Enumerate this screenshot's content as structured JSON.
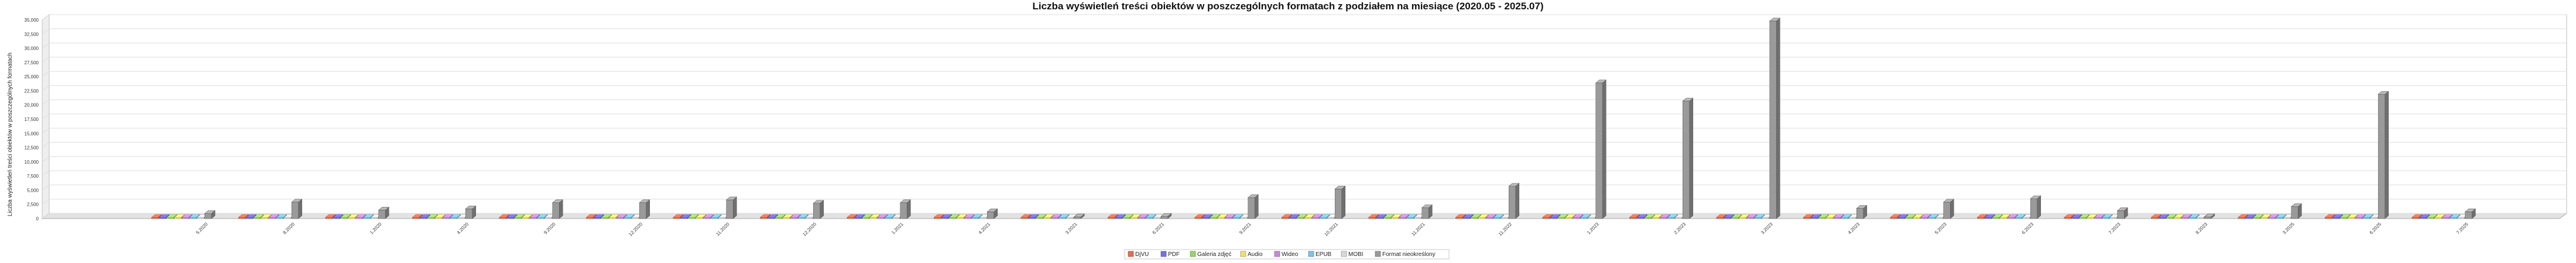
{
  "chart_data": {
    "type": "bar",
    "title": "Liczba wyświetleń treści obiektów w poszczególnych formatach z podziałem na miesiące (2020.05 - 2025.07)",
    "xlabel": "",
    "ylabel": "Liczba wyświetleń treści obiektów w poszczególnych formatach",
    "ylim": [
      0,
      35000
    ],
    "yticks": [
      0,
      2500,
      5000,
      7500,
      10000,
      12500,
      15000,
      17500,
      20000,
      22500,
      25000,
      27500,
      30000,
      32500,
      35000
    ],
    "ytick_labels": [
      "0",
      "2,500",
      "5,000",
      "7,500",
      "10,000",
      "12,500",
      "15,000",
      "17,500",
      "20,000",
      "22,500",
      "25,000",
      "27,500",
      "30,000",
      "32,500",
      "35,000"
    ],
    "grid": true,
    "legend_position": "bottom",
    "categories": [
      "5.2020",
      "8.2020",
      "1.2020",
      "4.2020",
      "9.2020",
      "12.2020",
      "11.2020",
      "12.2020",
      "1.2021",
      "4.2021",
      "3.2021",
      "6.2021",
      "9.2021",
      "10.2021",
      "11.2021",
      "11.2022",
      "1.2023",
      "2.2023",
      "3.2023",
      "4.2023",
      "5.2023",
      "6.2023",
      "7.2023",
      "8.2023",
      "3.2025",
      "6.2025",
      "7.2025"
    ],
    "series": [
      {
        "name": "DjVU",
        "color": "#e07050",
        "values": [
          0,
          0,
          0,
          0,
          0,
          0,
          0,
          0,
          0,
          0,
          0,
          0,
          0,
          0,
          0,
          0,
          0,
          0,
          0,
          0,
          0,
          0,
          0,
          0,
          0,
          0,
          0
        ]
      },
      {
        "name": "PDF",
        "color": "#7a6ee0",
        "values": [
          0,
          0,
          0,
          0,
          0,
          0,
          0,
          0,
          0,
          0,
          0,
          0,
          0,
          0,
          0,
          0,
          0,
          0,
          0,
          0,
          0,
          0,
          0,
          0,
          0,
          0,
          0
        ]
      },
      {
        "name": "Galeria zdjęć",
        "color": "#9cd36b",
        "values": [
          0,
          0,
          0,
          0,
          0,
          0,
          0,
          0,
          0,
          0,
          0,
          0,
          0,
          0,
          0,
          0,
          0,
          0,
          0,
          0,
          0,
          0,
          0,
          0,
          0,
          0,
          0
        ]
      },
      {
        "name": "Audio",
        "color": "#f0e070",
        "values": [
          0,
          0,
          0,
          0,
          0,
          0,
          0,
          0,
          0,
          0,
          0,
          0,
          0,
          0,
          0,
          0,
          0,
          0,
          0,
          0,
          0,
          0,
          0,
          0,
          0,
          0,
          0
        ]
      },
      {
        "name": "Wideo",
        "color": "#c88ad8",
        "values": [
          0,
          0,
          0,
          0,
          0,
          0,
          0,
          0,
          0,
          0,
          0,
          0,
          0,
          0,
          0,
          0,
          0,
          0,
          0,
          0,
          0,
          0,
          0,
          0,
          0,
          0,
          0
        ]
      },
      {
        "name": "EPUB",
        "color": "#7cc4e8",
        "values": [
          0,
          0,
          0,
          0,
          0,
          0,
          0,
          0,
          0,
          0,
          0,
          0,
          0,
          0,
          0,
          0,
          0,
          0,
          0,
          0,
          0,
          0,
          0,
          0,
          0,
          0,
          0
        ]
      },
      {
        "name": "MOBI",
        "color": "#d8d8d8",
        "values": [
          0,
          0,
          0,
          0,
          0,
          0,
          0,
          0,
          0,
          0,
          0,
          0,
          0,
          0,
          0,
          0,
          0,
          0,
          0,
          0,
          0,
          0,
          0,
          0,
          0,
          0,
          0
        ]
      },
      {
        "name": "Format nieokreślony",
        "color": "#9a9a9a",
        "values": [
          900,
          2900,
          1500,
          1700,
          2800,
          2800,
          3300,
          2700,
          2800,
          1200,
          300,
          400,
          3700,
          5200,
          1900,
          5700,
          23900,
          20700,
          34800,
          1800,
          2900,
          3500,
          1400,
          300,
          2100,
          21900,
          1200
        ]
      }
    ]
  }
}
